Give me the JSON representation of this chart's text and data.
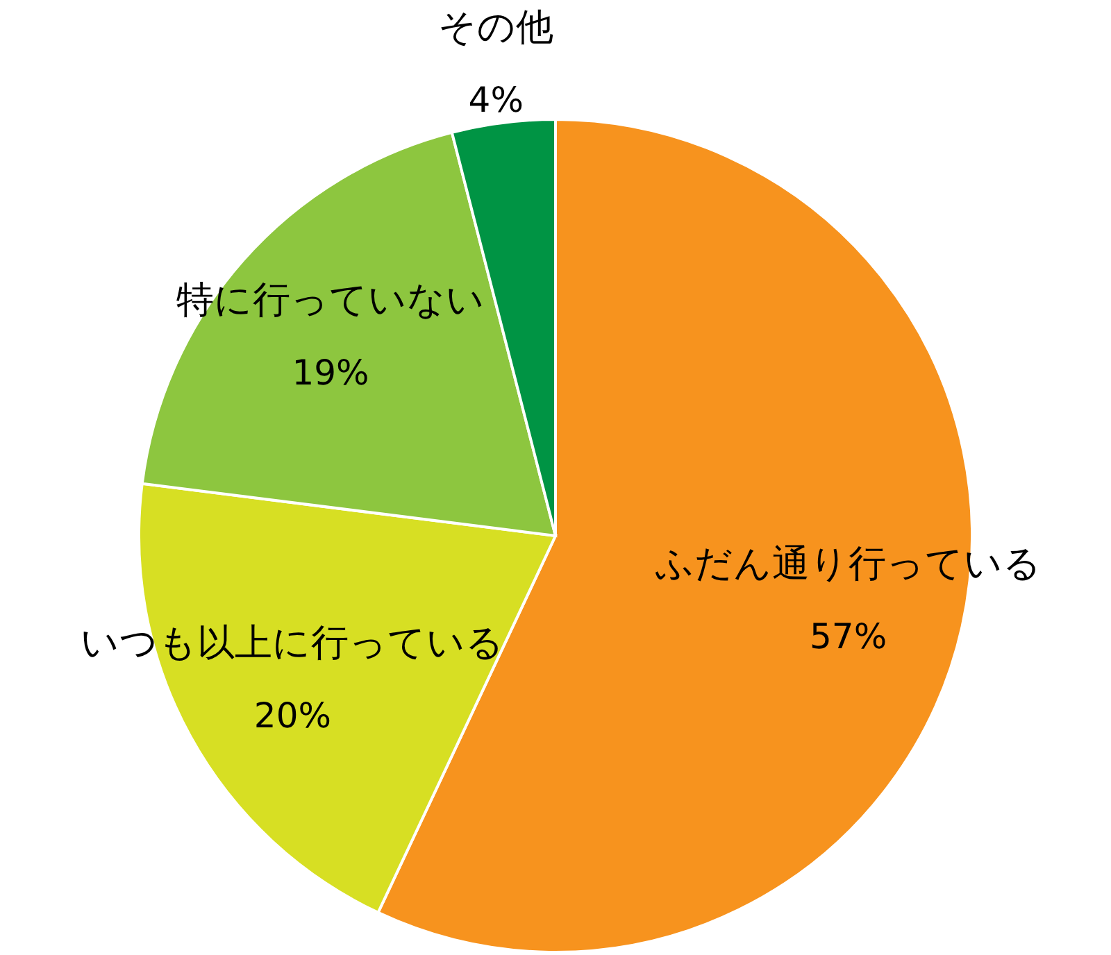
{
  "chart_data": {
    "type": "pie",
    "categories": [
      "ふだん通り行っている",
      "いつも以上に行っている",
      "特に行っていない",
      "その他"
    ],
    "values": [
      57,
      20,
      19,
      4
    ],
    "colors": [
      "#f7931e",
      "#d7df23",
      "#8dc63f",
      "#009444"
    ],
    "value_labels": [
      "57%",
      "20%",
      "19%",
      "4%"
    ]
  }
}
